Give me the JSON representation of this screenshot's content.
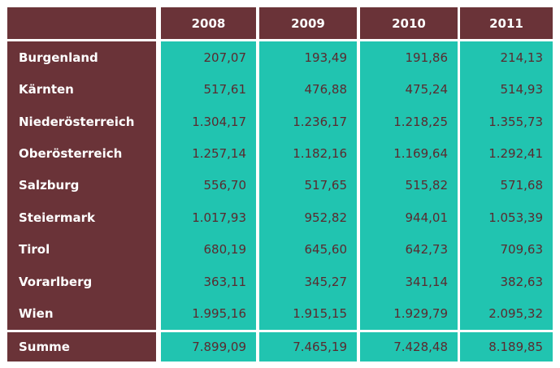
{
  "header": {
    "corner": "",
    "years": [
      "2008",
      "2009",
      "2010",
      "2011"
    ]
  },
  "rows": [
    {
      "label": "Burgenland",
      "values": [
        "207,07",
        "193,49",
        "191,86",
        "214,13"
      ]
    },
    {
      "label": "Kärnten",
      "values": [
        "517,61",
        "476,88",
        "475,24",
        "514,93"
      ]
    },
    {
      "label": "Niederösterreich",
      "values": [
        "1.304,17",
        "1.236,17",
        "1.218,25",
        "1.355,73"
      ]
    },
    {
      "label": "Oberösterreich",
      "values": [
        "1.257,14",
        "1.182,16",
        "1.169,64",
        "1.292,41"
      ]
    },
    {
      "label": "Salzburg",
      "values": [
        "556,70",
        "517,65",
        "515,82",
        "571,68"
      ]
    },
    {
      "label": "Steiermark",
      "values": [
        "1.017,93",
        "952,82",
        "944,01",
        "1.053,39"
      ]
    },
    {
      "label": "Tirol",
      "values": [
        "680,19",
        "645,60",
        "642,73",
        "709,63"
      ]
    },
    {
      "label": "Vorarlberg",
      "values": [
        "363,11",
        "345,27",
        "341,14",
        "382,63"
      ]
    },
    {
      "label": "Wien",
      "values": [
        "1.995,16",
        "1.915,15",
        "1.929,79",
        "2.095,32"
      ]
    }
  ],
  "total": {
    "label": "Summe",
    "values": [
      "7.899,09",
      "7.465,19",
      "7.428,48",
      "8.189,85"
    ]
  },
  "colors": {
    "label_bg": "#6a3338",
    "value_bg": "#21c4b0",
    "value_text": "#5a2a2f",
    "label_text": "#ffffff"
  }
}
